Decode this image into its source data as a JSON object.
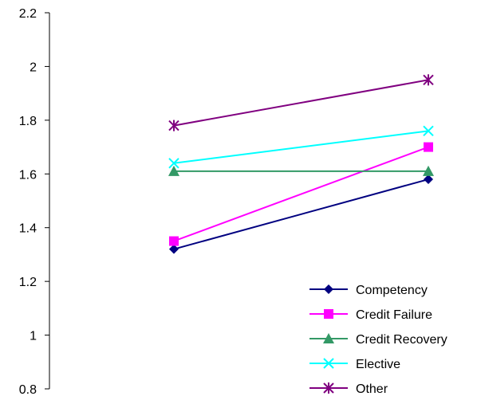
{
  "chart_data": {
    "type": "line",
    "x": [
      1,
      2
    ],
    "ylim": [
      0.8,
      2.2
    ],
    "yticks": [
      "0.8",
      "1",
      "1.2",
      "1.4",
      "1.6",
      "1.8",
      "2",
      "2.2"
    ],
    "grid": false,
    "legend_position": "bottom-right",
    "series": [
      {
        "name": "Competency",
        "values": [
          1.32,
          1.58
        ],
        "color": "#000080",
        "marker": "diamond"
      },
      {
        "name": "Credit Failure",
        "values": [
          1.35,
          1.7
        ],
        "color": "#FF00FF",
        "marker": "square"
      },
      {
        "name": "Credit Recovery",
        "values": [
          1.61,
          1.61
        ],
        "color": "#339966",
        "marker": "triangle"
      },
      {
        "name": "Elective",
        "values": [
          1.64,
          1.76
        ],
        "color": "#00FFFF",
        "marker": "x"
      },
      {
        "name": "Other",
        "values": [
          1.78,
          1.95
        ],
        "color": "#800080",
        "marker": "star"
      }
    ]
  }
}
